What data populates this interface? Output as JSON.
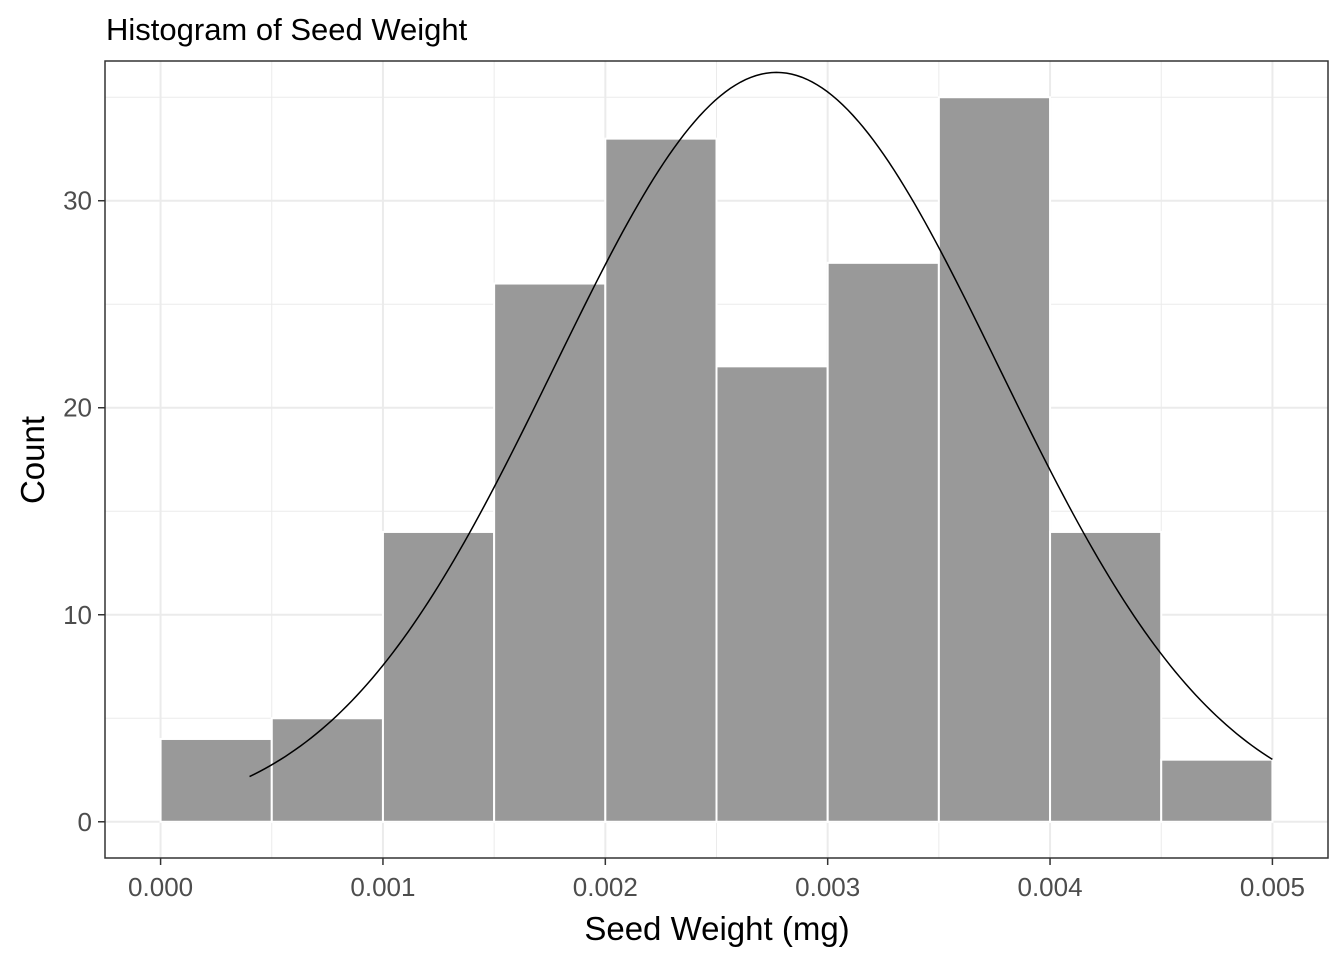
{
  "chart_data": {
    "type": "bar",
    "title": "Histogram of Seed Weight",
    "xlabel": "Seed Weight (mg)",
    "ylabel": "Count",
    "bins": [
      {
        "x0": 0.0,
        "x1": 0.0005,
        "count": 4
      },
      {
        "x0": 0.0005,
        "x1": 0.001,
        "count": 5
      },
      {
        "x0": 0.001,
        "x1": 0.0015,
        "count": 14
      },
      {
        "x0": 0.0015,
        "x1": 0.002,
        "count": 26
      },
      {
        "x0": 0.002,
        "x1": 0.0025,
        "count": 33
      },
      {
        "x0": 0.0025,
        "x1": 0.003,
        "count": 22
      },
      {
        "x0": 0.003,
        "x1": 0.0035,
        "count": 27
      },
      {
        "x0": 0.0035,
        "x1": 0.004,
        "count": 35
      },
      {
        "x0": 0.004,
        "x1": 0.0045,
        "count": 14
      },
      {
        "x0": 0.0045,
        "x1": 0.005,
        "count": 3
      }
    ],
    "density_curve": {
      "type": "normal",
      "mean": 0.00277,
      "sd": 0.001,
      "peak_count": 36.2,
      "x_range": [
        0.0004,
        0.005
      ]
    },
    "xlim": [
      -0.00025,
      0.00525
    ],
    "ylim": [
      -1.75,
      36.75
    ],
    "x_ticks": [
      0.0,
      0.001,
      0.002,
      0.003,
      0.004,
      0.005
    ],
    "x_tick_labels": [
      "0.000",
      "0.001",
      "0.002",
      "0.003",
      "0.004",
      "0.005"
    ],
    "y_ticks": [
      0,
      10,
      20,
      30
    ],
    "y_tick_labels": [
      "0",
      "10",
      "20",
      "30"
    ],
    "grid": true,
    "colors": {
      "bar_fill": "#999999",
      "bar_stroke": "#ffffff",
      "curve": "#000000",
      "grid": "#ebebeb",
      "panel_border": "#333333",
      "tick_text": "#4d4d4d"
    }
  }
}
